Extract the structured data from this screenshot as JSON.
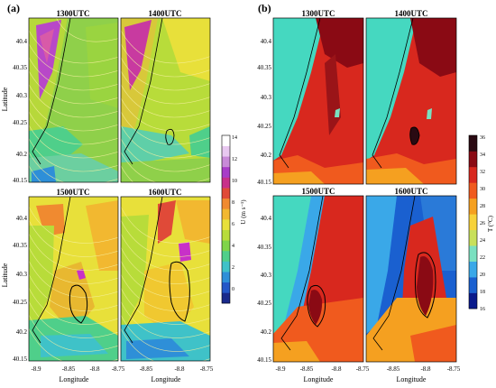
{
  "panel_a": {
    "label": "(a)",
    "times": [
      "1300UTC",
      "1400UTC",
      "1500UTC",
      "1600UTC"
    ],
    "ylabel": "Latitude",
    "xlabel": "Longitude",
    "yticks": [
      "40.4",
      "40.35",
      "40.3",
      "40.25",
      "40.2",
      "40.15"
    ],
    "xticks": [
      "-8.9",
      "-8.85",
      "-8.8",
      "-8.75"
    ],
    "colorbar": {
      "label": "U (m s⁻¹)",
      "ticks": [
        "14",
        "12",
        "10",
        "8",
        "6",
        "4",
        "2",
        "0"
      ],
      "colors": [
        "#1a2a8c",
        "#2457c8",
        "#2e8fd8",
        "#3fc2c8",
        "#4fcf8a",
        "#7fd44a",
        "#b8dc3a",
        "#e8e03a",
        "#f2b830",
        "#f08a30",
        "#e04a38",
        "#c8308a",
        "#a83cc8",
        "#c88ad8",
        "#e8c8f0",
        "#ffffff"
      ]
    }
  },
  "panel_b": {
    "label": "(b)",
    "times": [
      "1300UTC",
      "1400UTC",
      "1500UTC",
      "1600UTC"
    ],
    "xlabel": "Longitude",
    "yticks": [
      "40.4",
      "40.35",
      "40.3",
      "40.25",
      "40.2",
      "40.15"
    ],
    "xticks": [
      "-8.9",
      "-8.85",
      "-8.8",
      "-8.75"
    ],
    "colorbar": {
      "label": "T (°C)",
      "ticks": [
        "36",
        "34",
        "32",
        "30",
        "28",
        "26",
        "24",
        "22",
        "20",
        "18",
        "16"
      ],
      "colors": [
        "#2a0a12",
        "#8a0a14",
        "#d8281e",
        "#f05a1e",
        "#f5a020",
        "#f7d23a",
        "#c8e05a",
        "#7ae0c0",
        "#3aa8e8",
        "#1a60d0",
        "#0a1a8c"
      ]
    }
  }
}
